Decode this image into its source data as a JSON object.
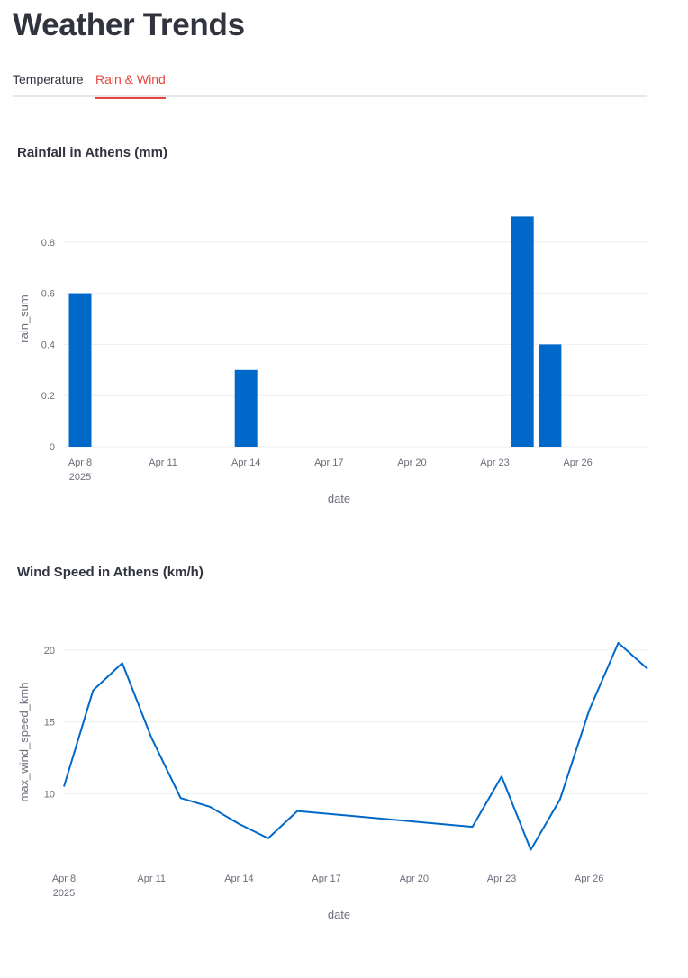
{
  "page": {
    "title": "Weather Trends"
  },
  "tabs": [
    {
      "label": "Temperature",
      "active": false
    },
    {
      "label": "Rain & Wind",
      "active": true
    }
  ],
  "colors": {
    "accent": "#e8463f",
    "series": "#0068c9",
    "text": "#31333f",
    "muted": "#6b6e7a",
    "grid": "#eceef1"
  },
  "chart_data": [
    {
      "type": "bar",
      "title": "Rainfall in Athens (mm)",
      "xlabel": "date",
      "ylabel": "rain_sum",
      "x": [
        "2025-04-08",
        "2025-04-09",
        "2025-04-10",
        "2025-04-11",
        "2025-04-12",
        "2025-04-13",
        "2025-04-14",
        "2025-04-15",
        "2025-04-16",
        "2025-04-17",
        "2025-04-18",
        "2025-04-19",
        "2025-04-20",
        "2025-04-21",
        "2025-04-22",
        "2025-04-23",
        "2025-04-24",
        "2025-04-25",
        "2025-04-26",
        "2025-04-27",
        "2025-04-28"
      ],
      "values": [
        0.6,
        0,
        0,
        0,
        0,
        0,
        0.3,
        0,
        0,
        0,
        0,
        0,
        0,
        0,
        0,
        0,
        0.9,
        0.4,
        0,
        0,
        0
      ],
      "xticks": [
        "Apr 8",
        "Apr 11",
        "Apr 14",
        "Apr 17",
        "Apr 20",
        "Apr 23",
        "Apr 26"
      ],
      "xticks_dates": [
        "2025-04-08",
        "2025-04-11",
        "2025-04-14",
        "2025-04-17",
        "2025-04-20",
        "2025-04-23",
        "2025-04-26"
      ],
      "xtick_year": "2025",
      "yticks": [
        "0",
        "0.2",
        "0.4",
        "0.6",
        "0.8"
      ],
      "ytick_values": [
        0,
        0.2,
        0.4,
        0.6,
        0.8
      ],
      "ylim": [
        0,
        1.0
      ],
      "grid": true
    },
    {
      "type": "line",
      "title": "Wind Speed in Athens (km/h)",
      "xlabel": "date",
      "ylabel": "max_wind_speed_kmh",
      "x": [
        "2025-04-08",
        "2025-04-09",
        "2025-04-10",
        "2025-04-11",
        "2025-04-12",
        "2025-04-13",
        "2025-04-14",
        "2025-04-15",
        "2025-04-16",
        "2025-04-22",
        "2025-04-23",
        "2025-04-24",
        "2025-04-25",
        "2025-04-26",
        "2025-04-27",
        "2025-04-28"
      ],
      "values": [
        10.5,
        17.2,
        19.1,
        13.9,
        9.7,
        9.1,
        7.9,
        6.9,
        8.8,
        7.7,
        11.2,
        6.1,
        9.6,
        15.8,
        20.5,
        18.7
      ],
      "xticks": [
        "Apr 8",
        "Apr 11",
        "Apr 14",
        "Apr 17",
        "Apr 20",
        "Apr 23",
        "Apr 26"
      ],
      "xticks_dates": [
        "2025-04-08",
        "2025-04-11",
        "2025-04-14",
        "2025-04-17",
        "2025-04-20",
        "2025-04-23",
        "2025-04-26"
      ],
      "xtick_year": "2025",
      "yticks": [
        "10",
        "15",
        "20"
      ],
      "ytick_values": [
        10,
        15,
        20
      ],
      "ylim": [
        5.2,
        22.0
      ],
      "grid": true
    }
  ]
}
